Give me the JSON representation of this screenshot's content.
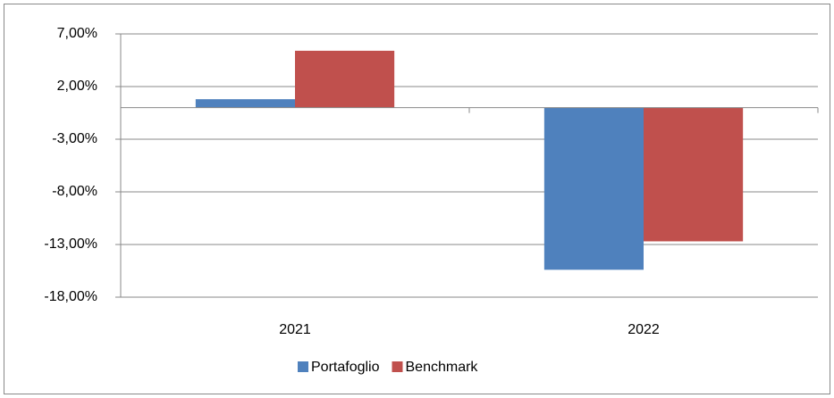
{
  "chart_data": {
    "type": "bar",
    "categories": [
      "2021",
      "2022"
    ],
    "series": [
      {
        "name": "Portafoglio",
        "color": "#4f81bd",
        "values": [
          0.8,
          -15.4
        ]
      },
      {
        "name": "Benchmark",
        "color": "#c0504d",
        "values": [
          5.4,
          -12.7
        ]
      }
    ],
    "ylim": [
      -18,
      7
    ],
    "yticks": [
      {
        "value": -18,
        "label": "-18,00%"
      },
      {
        "value": -13,
        "label": "-13,00%"
      },
      {
        "value": -8,
        "label": "-8,00%"
      },
      {
        "value": -3,
        "label": "-3,00%"
      },
      {
        "value": 2,
        "label": "2,00%"
      },
      {
        "value": 7,
        "label": "7,00%"
      }
    ],
    "grid": true,
    "legend": "bottom"
  }
}
